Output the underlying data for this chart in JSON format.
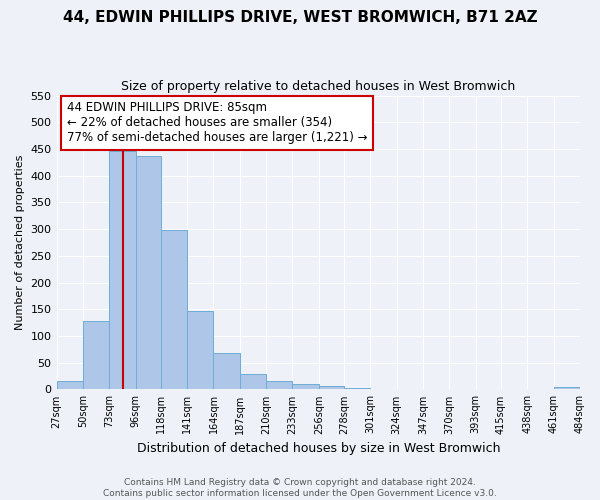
{
  "title": "44, EDWIN PHILLIPS DRIVE, WEST BROMWICH, B71 2AZ",
  "subtitle": "Size of property relative to detached houses in West Bromwich",
  "xlabel": "Distribution of detached houses by size in West Bromwich",
  "ylabel": "Number of detached properties",
  "bin_edges": [
    27,
    50,
    73,
    96,
    118,
    141,
    164,
    187,
    210,
    233,
    256,
    278,
    301,
    324,
    347,
    370,
    393,
    415,
    438,
    461,
    484
  ],
  "bar_heights": [
    15,
    128,
    447,
    437,
    298,
    146,
    68,
    29,
    16,
    10,
    6,
    2,
    1,
    0,
    0,
    0,
    0,
    0,
    0,
    5
  ],
  "bar_color": "#aec6e8",
  "bar_edge_color": "#6daed6",
  "property_size": 85,
  "property_line_color": "#cc0000",
  "annotation_line1": "44 EDWIN PHILLIPS DRIVE: 85sqm",
  "annotation_line2": "← 22% of detached houses are smaller (354)",
  "annotation_line3": "77% of semi-detached houses are larger (1,221) →",
  "annotation_box_color": "#ffffff",
  "annotation_box_edge": "#cc0000",
  "ylim": [
    0,
    550
  ],
  "yticks": [
    0,
    50,
    100,
    150,
    200,
    250,
    300,
    350,
    400,
    450,
    500,
    550
  ],
  "tick_labels": [
    "27sqm",
    "50sqm",
    "73sqm",
    "96sqm",
    "118sqm",
    "141sqm",
    "164sqm",
    "187sqm",
    "210sqm",
    "233sqm",
    "256sqm",
    "278sqm",
    "301sqm",
    "324sqm",
    "347sqm",
    "370sqm",
    "393sqm",
    "415sqm",
    "438sqm",
    "461sqm",
    "484sqm"
  ],
  "footer_line1": "Contains HM Land Registry data © Crown copyright and database right 2024.",
  "footer_line2": "Contains public sector information licensed under the Open Government Licence v3.0.",
  "background_color": "#eef2f8",
  "grid_color": "#ffffff",
  "title_fontsize": 11,
  "subtitle_fontsize": 9,
  "ylabel_fontsize": 8,
  "xlabel_fontsize": 9,
  "ytick_fontsize": 8,
  "xtick_fontsize": 7,
  "annotation_fontsize": 8.5,
  "footer_fontsize": 6.5
}
